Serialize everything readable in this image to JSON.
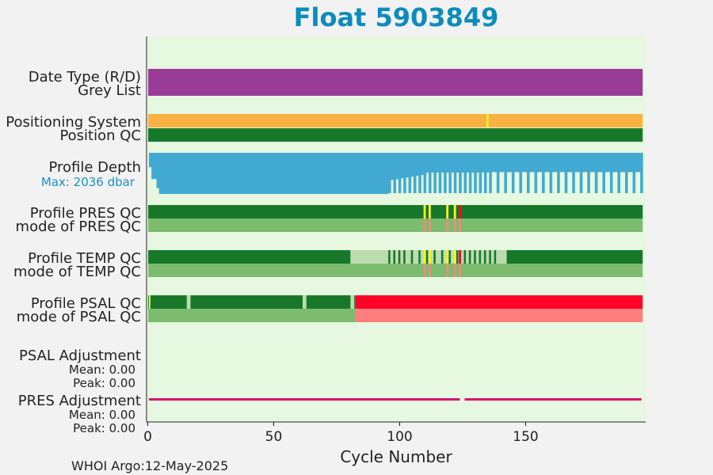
{
  "chart_data": {
    "type": "table",
    "title": "Float 5903849",
    "xlabel": "Cycle Number",
    "xlim": [
      -1,
      197
    ],
    "xticks": [
      0,
      50,
      100,
      150
    ],
    "rows": [
      {
        "label": "Date Type (R/D)"
      },
      {
        "label": "Grey List"
      },
      {
        "label": "Positioning System"
      },
      {
        "label": "Position QC"
      },
      {
        "label": "Profile Depth"
      },
      {
        "label": "Max: 2036 dbar"
      },
      {
        "label": "Profile PRES QC"
      },
      {
        "label": "mode of PRES QC"
      },
      {
        "label": "Profile TEMP QC"
      },
      {
        "label": "mode of TEMP QC"
      },
      {
        "label": "Profile PSAL QC"
      },
      {
        "label": "mode of PSAL QC"
      },
      {
        "label": "PSAL Adjustment"
      },
      {
        "label": "Mean: 0.00"
      },
      {
        "label": "Peak: 0.00"
      },
      {
        "label": "PRES Adjustment"
      },
      {
        "label": "Mean: 0.00"
      },
      {
        "label": "Peak: 0.00"
      }
    ],
    "max_pressure_dbar": 2036,
    "colors": {
      "background": "#e6f8e0",
      "date_type": "#993c98",
      "positioning": "#f9b143",
      "position_qc": "#17782a",
      "depth": "#42aad2",
      "depth_label": "#1a91c4",
      "good": "#17782a",
      "mode_good": "#7dbb6e",
      "probably_good": "#bcdcaf",
      "flag_yellow": "#f5f229",
      "bad": "#ff0427",
      "mode_bad": "#fe7e7e",
      "mode_mixed": "#e4917a",
      "pres_adjust": "#d90f6f",
      "title": "#0b8cbd"
    },
    "positioning_flags": [
      134
    ],
    "pres_qc_flags": [
      {
        "cycle": 109,
        "flag": "yellow"
      },
      {
        "cycle": 111,
        "flag": "yellow"
      },
      {
        "cycle": 118,
        "flag": "yellow"
      },
      {
        "cycle": 121,
        "flag": "yellow"
      },
      {
        "cycle": 123,
        "flag": "bad"
      }
    ],
    "temp_qc": {
      "good_until": 80,
      "probably_good_range": [
        80,
        142
      ],
      "good_stripes": [
        95,
        97,
        99,
        101,
        104,
        107,
        110,
        113,
        116,
        119,
        122,
        125,
        127,
        129,
        131,
        133,
        135,
        137
      ],
      "flags": [
        {
          "cycle": 109,
          "flag": "yellow"
        },
        {
          "cycle": 111,
          "flag": "yellow"
        },
        {
          "cycle": 118,
          "flag": "yellow"
        },
        {
          "cycle": 121,
          "flag": "yellow"
        },
        {
          "cycle": 123,
          "flag": "bad"
        }
      ]
    },
    "mode_flags": [
      109,
      111,
      118,
      121,
      123
    ],
    "psal_qc": {
      "flags": [
        {
          "cycle": 0,
          "flag": "yellow"
        }
      ],
      "probably_good_cycles": [
        15,
        61,
        80
      ],
      "bad_from": 82
    },
    "pres_adjustment_gaps": [
      124
    ],
    "depth_profile": [
      [
        0,
        2036
      ],
      [
        1,
        1300
      ],
      [
        2,
        1300
      ],
      [
        3,
        1750
      ],
      [
        4,
        2036
      ],
      [
        20,
        2036
      ],
      [
        40,
        2036
      ],
      [
        60,
        2036
      ],
      [
        82,
        2036
      ],
      [
        83,
        2036
      ],
      [
        95,
        2036
      ]
    ]
  },
  "footer": {
    "credit": "WHOI Argo:12-May-2025"
  }
}
